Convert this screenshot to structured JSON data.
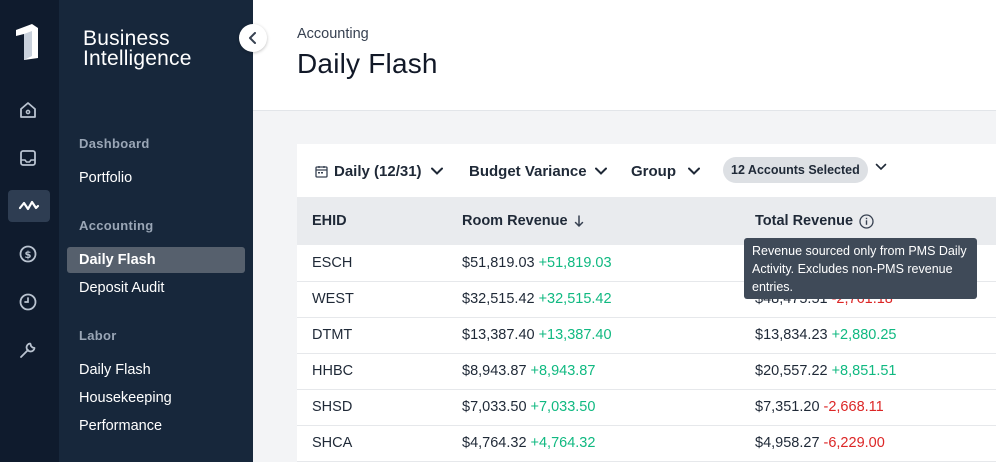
{
  "sidebar": {
    "brand_line1": "Business",
    "brand_line2": "Intelligence",
    "sections": [
      {
        "heading": "Dashboard",
        "items": [
          {
            "label": "Portfolio"
          }
        ]
      },
      {
        "heading": "Accounting",
        "items": [
          {
            "label": "Daily Flash",
            "active": true
          },
          {
            "label": "Deposit Audit"
          }
        ]
      },
      {
        "heading": "Labor",
        "items": [
          {
            "label": "Daily Flash"
          },
          {
            "label": "Housekeeping"
          },
          {
            "label": "Performance"
          }
        ]
      }
    ],
    "rail_icons": [
      "logo-icon",
      "home-icon",
      "inbox-icon",
      "activity-icon",
      "dollar-icon",
      "clock-icon",
      "wrench-icon"
    ],
    "active_rail_icon": "activity-icon"
  },
  "header": {
    "breadcrumb": "Accounting",
    "title": "Daily Flash"
  },
  "toolbar": {
    "date_filter": "Daily (12/31)",
    "comparison": "Budget Variance",
    "group": "Group",
    "accounts_pill": "12 Accounts Selected"
  },
  "table": {
    "columns": [
      "EHID",
      "Room Revenue",
      "Total Revenue"
    ],
    "sort_column": "Room Revenue",
    "sort_direction": "descending",
    "rows": [
      {
        "ehid": "ESCH",
        "room": "$51,819.03",
        "room_var": "+51,819.03",
        "total": "",
        "total_var": ""
      },
      {
        "ehid": "WEST",
        "room": "$32,515.42",
        "room_var": "+32,515.42",
        "total": "$48,475.51",
        "total_var": "-2,761.18"
      },
      {
        "ehid": "DTMT",
        "room": "$13,387.40",
        "room_var": "+13,387.40",
        "total": "$13,834.23",
        "total_var": "+2,880.25"
      },
      {
        "ehid": "HHBC",
        "room": "$8,943.87",
        "room_var": "+8,943.87",
        "total": "$20,557.22",
        "total_var": "+8,851.51"
      },
      {
        "ehid": "SHSD",
        "room": "$7,033.50",
        "room_var": "+7,033.50",
        "total": "$7,351.20",
        "total_var": "-2,668.11"
      },
      {
        "ehid": "SHCA",
        "room": "$4,764.32",
        "room_var": "+4,764.32",
        "total": "$4,958.27",
        "total_var": "-6,229.00"
      }
    ]
  },
  "tooltip": {
    "text": "Revenue sourced only from PMS Daily Activity. Excludes non-PMS revenue entries."
  },
  "colors": {
    "rail_bg": "#0f1b2d",
    "sidebar_bg": "#17273b",
    "positive": "#10b981",
    "negative": "#dc2626",
    "tooltip_bg": "#3f4a58"
  }
}
